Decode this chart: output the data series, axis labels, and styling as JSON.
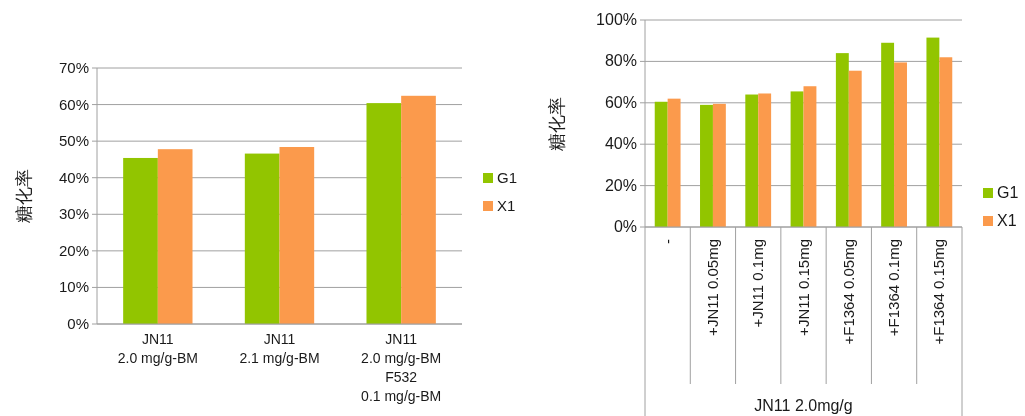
{
  "chart_data": [
    {
      "type": "bar",
      "ylabel": "糖化率",
      "categories": [
        "JN11\n2.0 mg/g-BM",
        "JN11\n2.1 mg/g-BM",
        "JN11\n2.0 mg/g-BM\nF532\n0.1 mg/g-BM"
      ],
      "series": [
        {
          "name": "G1",
          "color": "#92c500",
          "values": [
            45.4,
            46.6,
            60.4
          ]
        },
        {
          "name": "X1",
          "color": "#fb9a4c",
          "values": [
            47.8,
            48.4,
            62.4
          ]
        }
      ],
      "ylim": [
        0,
        70
      ],
      "yticks": [
        {
          "value": 0,
          "label": "0%"
        },
        {
          "value": 10,
          "label": "10%"
        },
        {
          "value": 20,
          "label": "20%"
        },
        {
          "value": 30,
          "label": "30%"
        },
        {
          "value": 40,
          "label": "40%"
        },
        {
          "value": 50,
          "label": "50%"
        },
        {
          "value": 60,
          "label": "60%"
        },
        {
          "value": 70,
          "label": "70%"
        }
      ],
      "grid": "y",
      "legend": "right"
    },
    {
      "type": "bar",
      "ylabel": "糖化率",
      "xlabel": "JN11 2.0mg/g",
      "categories": [
        "-",
        "+JN11 0.05mg",
        "+JN11 0.1mg",
        "+JN11 0.15mg",
        "+F1364 0.05mg",
        "+F1364 0.1mg",
        "+F1364 0.15mg"
      ],
      "series": [
        {
          "name": "G1",
          "color": "#92c500",
          "values": [
            60.5,
            59,
            64,
            65.5,
            84,
            89,
            91.5
          ]
        },
        {
          "name": "X1",
          "color": "#fb9a4c",
          "values": [
            62,
            59.5,
            64.5,
            68,
            75.5,
            79.5,
            82
          ]
        }
      ],
      "ylim": [
        0,
        100
      ],
      "yticks": [
        {
          "value": 0,
          "label": "0%"
        },
        {
          "value": 20,
          "label": "20%"
        },
        {
          "value": 40,
          "label": "40%"
        },
        {
          "value": 60,
          "label": "60%"
        },
        {
          "value": 80,
          "label": "80%"
        },
        {
          "value": 100,
          "label": "100%"
        }
      ],
      "grid": "y",
      "legend": "right"
    }
  ]
}
